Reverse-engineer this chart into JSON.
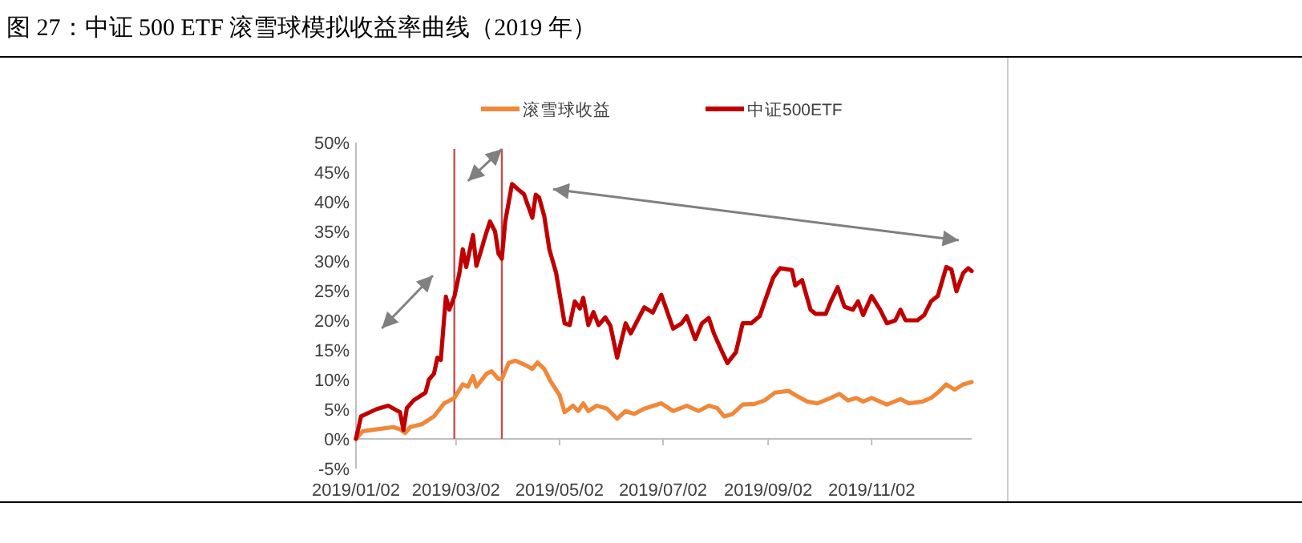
{
  "chart_data": {
    "type": "line",
    "title": "图 27：中证 500 ETF 滚雪球模拟收益率曲线（2019 年）",
    "legend": "top",
    "marker": "none",
    "line_style": "solid",
    "grid": false,
    "xlim": [
      "2019-01-02",
      "2019-12-31"
    ],
    "xticks": [
      {
        "value": "2019-01-02",
        "label": "2019/01/02"
      },
      {
        "value": "2019-03-02",
        "label": "2019/03/02"
      },
      {
        "value": "2019-05-02",
        "label": "2019/05/02"
      },
      {
        "value": "2019-07-02",
        "label": "2019/07/02"
      },
      {
        "value": "2019-09-02",
        "label": "2019/09/02"
      },
      {
        "value": "2019-11-02",
        "label": "2019/11/02"
      }
    ],
    "ylim": [
      -5,
      50
    ],
    "yticks": [
      {
        "value": -5,
        "label": "-5%"
      },
      {
        "value": 0,
        "label": "0%"
      },
      {
        "value": 5,
        "label": "5%"
      },
      {
        "value": 10,
        "label": "10%"
      },
      {
        "value": 15,
        "label": "15%"
      },
      {
        "value": 20,
        "label": "20%"
      },
      {
        "value": 25,
        "label": "25%"
      },
      {
        "value": 30,
        "label": "30%"
      },
      {
        "value": 35,
        "label": "35%"
      },
      {
        "value": 40,
        "label": "40%"
      },
      {
        "value": 45,
        "label": "45%"
      },
      {
        "value": 50,
        "label": "50%"
      }
    ],
    "ref_lines": [
      {
        "axis": "x",
        "value": "2019-03-01",
        "color": "#c0504d"
      },
      {
        "axis": "x",
        "value": "2019-03-29",
        "color": "#c0504d"
      }
    ],
    "series": [
      {
        "name": "滚雪球收益",
        "color": "#f0883a",
        "x": [
          "2019-01-02",
          "2019-01-06",
          "2019-01-14",
          "2019-01-24",
          "2019-01-28",
          "2019-01-31",
          "2019-02-03",
          "2019-02-10",
          "2019-02-17",
          "2019-02-23",
          "2019-03-01",
          "2019-03-06",
          "2019-03-09",
          "2019-03-12",
          "2019-03-14",
          "2019-03-20",
          "2019-03-23",
          "2019-03-27",
          "2019-03-29",
          "2019-04-02",
          "2019-04-06",
          "2019-04-13",
          "2019-04-16",
          "2019-04-19",
          "2019-04-23",
          "2019-04-27",
          "2019-05-02",
          "2019-05-05",
          "2019-05-10",
          "2019-05-13",
          "2019-05-16",
          "2019-05-19",
          "2019-05-24",
          "2019-05-30",
          "2019-06-05",
          "2019-06-08",
          "2019-06-10",
          "2019-06-15",
          "2019-06-21",
          "2019-07-01",
          "2019-07-08",
          "2019-07-16",
          "2019-07-23",
          "2019-07-29",
          "2019-08-03",
          "2019-08-07",
          "2019-08-12",
          "2019-08-18",
          "2019-08-25",
          "2019-08-31",
          "2019-09-06",
          "2019-09-14",
          "2019-09-18",
          "2019-09-25",
          "2019-10-01",
          "2019-10-09",
          "2019-10-14",
          "2019-10-19",
          "2019-10-24",
          "2019-10-28",
          "2019-11-02",
          "2019-11-11",
          "2019-11-19",
          "2019-11-24",
          "2019-12-02",
          "2019-12-07",
          "2019-12-11",
          "2019-12-16",
          "2019-12-21",
          "2019-12-26",
          "2019-12-31"
        ],
        "values": [
          0,
          1.3,
          1.6,
          2,
          1.6,
          1,
          2,
          2.5,
          3.8,
          6,
          6.9,
          9.2,
          8.8,
          10.6,
          8.8,
          11,
          11.4,
          10.1,
          10.1,
          12.8,
          13.2,
          12.3,
          11.8,
          12.9,
          11.8,
          9.6,
          7.4,
          4.5,
          5.6,
          4.7,
          6,
          4.7,
          5.6,
          5.1,
          3.4,
          4.2,
          4.7,
          4.2,
          5.1,
          6,
          4.7,
          5.6,
          4.7,
          5.6,
          5.2,
          3.8,
          4.2,
          5.8,
          5.9,
          6.5,
          7.8,
          8.1,
          7.4,
          6.3,
          6,
          6.9,
          7.6,
          6.5,
          6.9,
          6.3,
          6.9,
          5.8,
          6.7,
          6,
          6.3,
          6.9,
          7.8,
          9.2,
          8.3,
          9.2,
          9.6
        ]
      },
      {
        "name": "中证500ETF",
        "color": "#c00000",
        "x": [
          "2019-01-02",
          "2019-01-05",
          "2019-01-14",
          "2019-01-21",
          "2019-01-28",
          "2019-01-30",
          "2019-02-01",
          "2019-02-05",
          "2019-02-12",
          "2019-02-14",
          "2019-02-17",
          "2019-02-19",
          "2019-02-21",
          "2019-02-24",
          "2019-02-26",
          "2019-03-01",
          "2019-03-04",
          "2019-03-06",
          "2019-03-08",
          "2019-03-12",
          "2019-03-14",
          "2019-03-17",
          "2019-03-19",
          "2019-03-22",
          "2019-03-25",
          "2019-03-27",
          "2019-03-29",
          "2019-03-31",
          "2019-04-04",
          "2019-04-08",
          "2019-04-11",
          "2019-04-16",
          "2019-04-18",
          "2019-04-20",
          "2019-04-23",
          "2019-04-26",
          "2019-04-30",
          "2019-05-05",
          "2019-05-08",
          "2019-05-11",
          "2019-05-14",
          "2019-05-16",
          "2019-05-19",
          "2019-05-22",
          "2019-05-25",
          "2019-05-29",
          "2019-06-01",
          "2019-06-05",
          "2019-06-10",
          "2019-06-13",
          "2019-06-21",
          "2019-06-26",
          "2019-07-01",
          "2019-07-03",
          "2019-07-08",
          "2019-07-13",
          "2019-07-16",
          "2019-07-21",
          "2019-07-25",
          "2019-07-29",
          "2019-08-01",
          "2019-08-06",
          "2019-08-09",
          "2019-08-14",
          "2019-08-18",
          "2019-08-23",
          "2019-08-28",
          "2019-08-31",
          "2019-09-05",
          "2019-09-09",
          "2019-09-16",
          "2019-09-18",
          "2019-09-22",
          "2019-09-27",
          "2019-09-30",
          "2019-10-06",
          "2019-10-09",
          "2019-10-13",
          "2019-10-17",
          "2019-10-22",
          "2019-10-25",
          "2019-10-28",
          "2019-11-02",
          "2019-11-07",
          "2019-11-11",
          "2019-11-16",
          "2019-11-19",
          "2019-11-22",
          "2019-11-29",
          "2019-12-03",
          "2019-12-07",
          "2019-12-11",
          "2019-12-16",
          "2019-12-19",
          "2019-12-22",
          "2019-12-26",
          "2019-12-29",
          "2019-12-31"
        ],
        "values": [
          0,
          3.8,
          5,
          5.6,
          4.5,
          1.5,
          5.2,
          6.5,
          7.8,
          10,
          11,
          13.7,
          13.3,
          24,
          21.8,
          24,
          28,
          32,
          29,
          34.4,
          29.2,
          32,
          34,
          36.7,
          35,
          31.3,
          30.4,
          36.7,
          43,
          42,
          41.3,
          37.3,
          41.2,
          40.7,
          37.6,
          32,
          28,
          19.5,
          19.2,
          23.2,
          22,
          23.8,
          19.2,
          21.4,
          19.2,
          20.5,
          19.1,
          13.7,
          19.5,
          17.8,
          22.2,
          21.3,
          24.3,
          22.7,
          18.6,
          19.5,
          20.7,
          16.8,
          19.5,
          20.4,
          17.8,
          14.6,
          12.8,
          14.6,
          19.5,
          19.5,
          20.7,
          23.2,
          27.2,
          28.8,
          28.5,
          25.9,
          26.8,
          21.8,
          21.1,
          21.1,
          23.2,
          25.6,
          22.3,
          21.8,
          23.2,
          20.9,
          24.1,
          21.8,
          19.5,
          20,
          21.8,
          20,
          20,
          20.9,
          23.2,
          24.1,
          29,
          28.6,
          24.9,
          28,
          28.8,
          28.3
        ]
      }
    ]
  }
}
